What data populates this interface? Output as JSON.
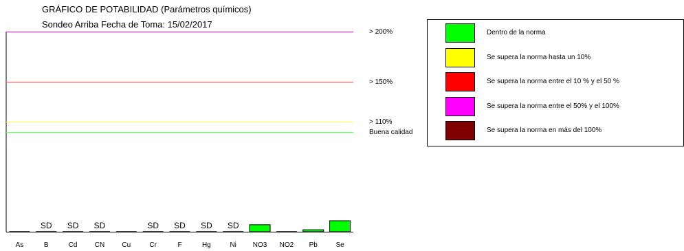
{
  "chart_data": {
    "type": "bar",
    "title": "GRÁFICO DE POTABILIDAD  (Parámetros químicos)",
    "subtitle": "Sondeo  Arriba Fecha de Toma: 15/02/2017",
    "categories": [
      "As",
      "B",
      "Cd",
      "CN",
      "Cu",
      "Cr",
      "F",
      "Hg",
      "Ni",
      "NO3",
      "NO2",
      "Pb",
      "Se"
    ],
    "values": [
      0,
      0,
      0,
      0,
      0,
      0,
      0,
      0,
      0,
      7,
      0,
      2,
      11
    ],
    "bar_labels": [
      "",
      "SD",
      "SD",
      "SD",
      "",
      "SD",
      "SD",
      "SD",
      "SD",
      "",
      "",
      "",
      ""
    ],
    "unit": "% of norm limit",
    "ylim": [
      0,
      200
    ],
    "reference_lines": [
      {
        "value": 200,
        "label": "> 200%",
        "color": "#cc33cc"
      },
      {
        "value": 150,
        "label": "> 150%",
        "color": "#ff6666"
      },
      {
        "value": 110,
        "label": "> 110%",
        "color": "#ffff66"
      },
      {
        "value": 100,
        "label": "Buena calidad",
        "color": "#66ff66"
      }
    ],
    "legend": [
      {
        "label": "Dentro de la norma",
        "color": "#00ff00"
      },
      {
        "label": "Se supera la norma hasta un 10%",
        "color": "#ffff00"
      },
      {
        "label": "Se supera la norma entre el 10 % y el 50 %",
        "color": "#ff0000"
      },
      {
        "label": "Se supera la norma entre el 50% y el 100%",
        "color": "#ff00ff"
      },
      {
        "label": "Se supera la norma en más del 100%",
        "color": "#800000"
      }
    ],
    "legend_position": "top-right",
    "bar_color": "#00ff00"
  }
}
